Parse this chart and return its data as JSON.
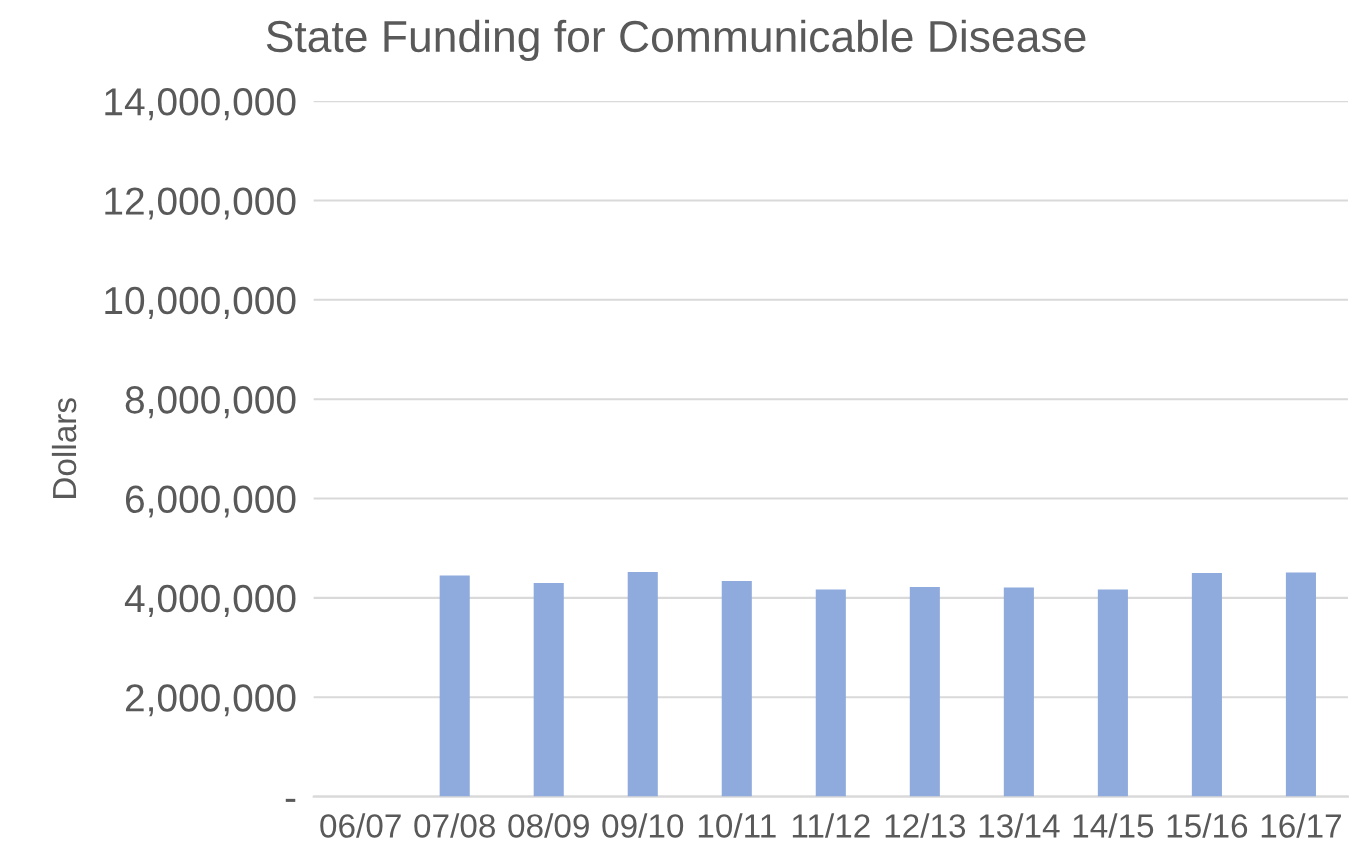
{
  "chart_data": {
    "type": "bar",
    "title": "State Funding for Communicable Disease",
    "ylabel": "Dollars",
    "categories": [
      "06/07",
      "07/08",
      "08/09",
      "09/10",
      "10/11",
      "11/12",
      "12/13",
      "13/14",
      "14/15",
      "15/16",
      "16/17"
    ],
    "series": [
      {
        "color": "#8faadc",
        "values": [
          null,
          4450000,
          4300000,
          4520000,
          4340000,
          4170000,
          4220000,
          4210000,
          4170000,
          4500000,
          4510000
        ]
      }
    ],
    "ylim": [
      0,
      14000000
    ],
    "yticks": [
      {
        "value": 0,
        "label": "-"
      },
      {
        "value": 2000000,
        "label": "2,000,000"
      },
      {
        "value": 4000000,
        "label": "4,000,000"
      },
      {
        "value": 6000000,
        "label": "6,000,000"
      },
      {
        "value": 8000000,
        "label": "8,000,000"
      },
      {
        "value": 10000000,
        "label": "10,000,000"
      },
      {
        "value": 12000000,
        "label": "12,000,000"
      },
      {
        "value": 14000000,
        "label": "14,000,000"
      }
    ],
    "grid": "y",
    "legend": false
  }
}
